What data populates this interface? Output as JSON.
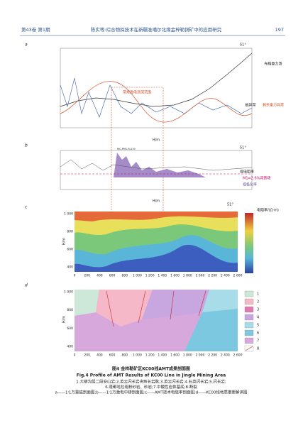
{
  "header": {
    "volume": "第43卷 第1期",
    "title": "陈实等:综合物探技术在新疆准噶尔北缘金梓勒铜矿中的应用研究",
    "page": "197"
  },
  "panels": {
    "a": {
      "label": "a",
      "north": "51°",
      "bouguer": "布格重力场",
      "magnetic": "磁异常",
      "residual": "剩余重力异常",
      "ip_range": "常规激电测深范围",
      "xlabel": "H/m"
    },
    "b": {
      "label": "b",
      "north": "51°",
      "point": "MC-PM1-R-019",
      "resistivity": "视电阻率",
      "background": "M1=2.6%背景场",
      "polarization": "视极化率",
      "xlabel": "H/m"
    },
    "c": {
      "label": "c",
      "north": "51°",
      "colorbar_title": "电阻率/(Ω·m)",
      "ylabel": "H/m",
      "yticks": [
        "1 000",
        "800",
        "600",
        "400"
      ],
      "xticks": [
        "0",
        "200",
        "400",
        "600",
        "800",
        "1 000",
        "1 200",
        "1 400",
        "1 600",
        "1 800",
        "2 000",
        "2 200",
        "2 400",
        "2 600"
      ]
    },
    "d": {
      "label": "d",
      "ylabel": "H/m",
      "yticks": [
        "1 000",
        "800",
        "600",
        "400"
      ],
      "xticks": [
        "0",
        "200",
        "400",
        "600",
        "800",
        "1 000",
        "1 200",
        "1 400",
        "1 600",
        "1 800",
        "2 000",
        "2 200",
        "2 400",
        "2 600"
      ],
      "legend": [
        "1",
        "2",
        "3",
        "4",
        "5",
        "6",
        "7",
        "8"
      ]
    }
  },
  "caption": {
    "title_cn": "图4 金梓勒矿区KC00线AMT成果剖面图",
    "title_en": "Fig.4 Profile of AMT Results of KC00 Line in Jingle Mining Area",
    "lines": [
      "1.大柳沟组二段安山岩;2.英云闪长岩夹辉长岩脉;3.英云闪长岩;4.石英闪长岩;5.闪长岩;",
      "6.蓬都哈拉组粉砂岩、砂岩;7.中酸性岩体基底;8.断裂",
      "a——1∶1万重磁剖面图;b——1∶1万激电中梯剖面图;c——AMT技术电阻率剖面图;d——KC00线地质推断解译图"
    ]
  }
}
